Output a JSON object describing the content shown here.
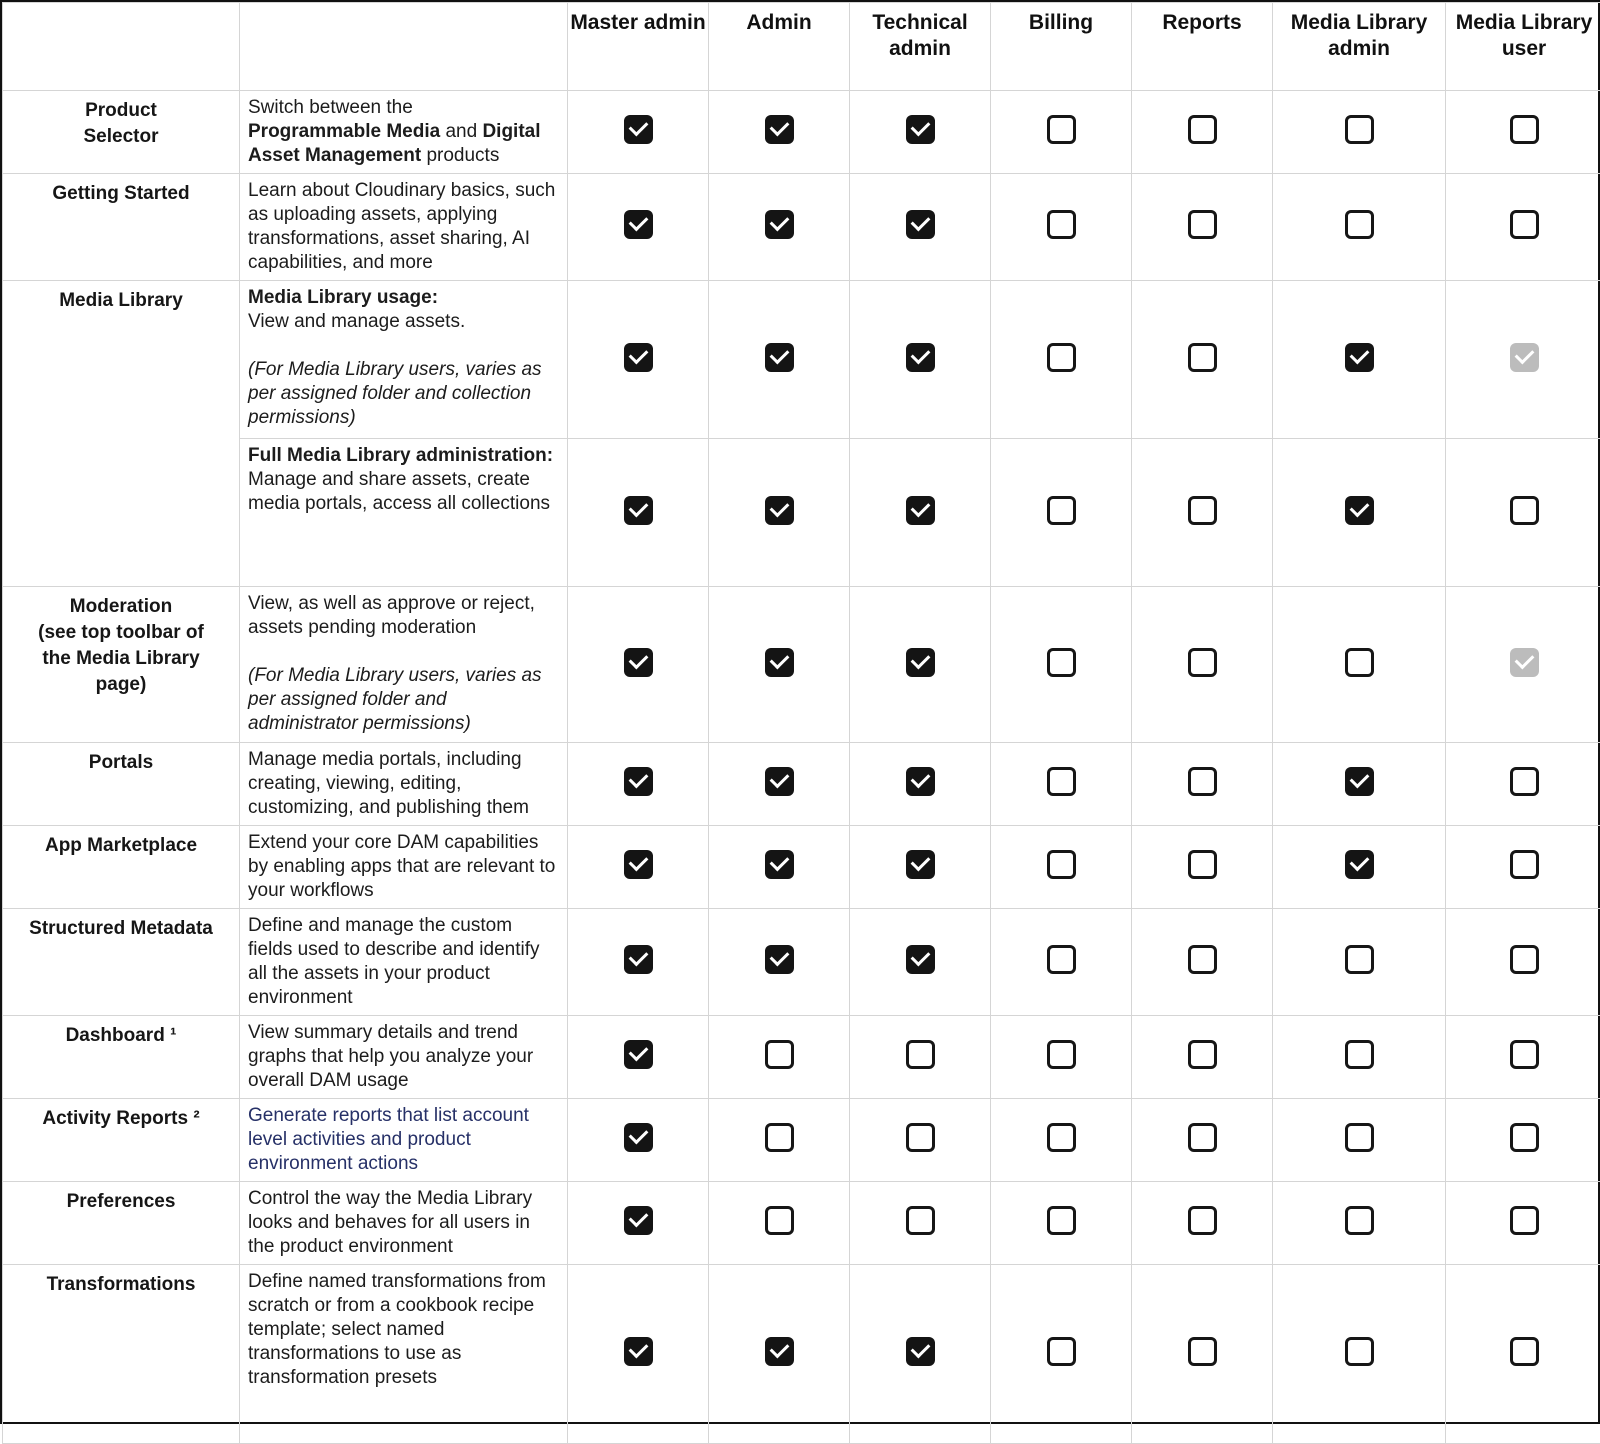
{
  "colors": {
    "checkbox_checked": "#141414",
    "checkbox_checked_disabled": "#bcbcbc",
    "checkbox_empty_border": "#161616",
    "grid_line": "#d5d5d5",
    "outer_border": "#111111",
    "link_text": "#263067",
    "body_text": "#1c1c1c"
  },
  "header": {
    "feature_column_label": "",
    "description_column_label": "",
    "roles": [
      "Master admin",
      "Admin",
      "Technical admin",
      "Billing",
      "Reports",
      "Media Library admin",
      "Media Library user"
    ]
  },
  "checkbox_states_legend": {
    "checked": "black checkbox with white checkmark",
    "empty": "white checkbox with black border",
    "checked_disabled": "gray checkbox with white checkmark"
  },
  "rows": [
    {
      "name": "product-selector",
      "label": "Product\nSelector",
      "desc": [
        {
          "text": "Switch between the\n"
        },
        {
          "text": "Programmable Media",
          "bold": true
        },
        {
          "text": " and "
        },
        {
          "text": "Digital Asset Management",
          "bold": true
        },
        {
          "text": " products"
        }
      ],
      "checks": [
        "checked",
        "checked",
        "checked",
        "empty",
        "empty",
        "empty",
        "empty"
      ]
    },
    {
      "name": "getting-started",
      "label": "Getting Started",
      "desc": [
        {
          "text": "Learn about Cloudinary basics, such as uploading assets, applying transformations, asset sharing, AI capabilities, and more"
        }
      ],
      "checks": [
        "checked",
        "checked",
        "checked",
        "empty",
        "empty",
        "empty",
        "empty"
      ]
    },
    {
      "name": "media-library-usage",
      "label": "Media Library",
      "label_rowspan": 2,
      "desc": [
        {
          "text": "Media Library usage:",
          "bold": true
        },
        {
          "text": "\nView and manage assets.\n\n"
        },
        {
          "text": "(For Media Library users, varies as per assigned folder and collection permissions)",
          "italic": true
        }
      ],
      "checks": [
        "checked",
        "checked",
        "checked",
        "empty",
        "empty",
        "checked",
        "checked_disabled"
      ]
    },
    {
      "name": "media-library-full-administration",
      "label": null,
      "desc": [
        {
          "text": "Full Media Library administration:",
          "bold": true
        },
        {
          "text": "\nManage and share assets, create media portals, access all collections"
        }
      ],
      "checks": [
        "checked",
        "checked",
        "checked",
        "empty",
        "empty",
        "checked",
        "empty"
      ]
    },
    {
      "name": "moderation",
      "label": "Moderation\n(see top toolbar of\nthe Media Library\npage)",
      "desc": [
        {
          "text": "View, as well as approve or reject, assets pending moderation\n\n"
        },
        {
          "text": "(For Media Library users, varies as per assigned folder and administrator permissions)",
          "italic": true
        }
      ],
      "checks": [
        "checked",
        "checked",
        "checked",
        "empty",
        "empty",
        "empty",
        "checked_disabled"
      ]
    },
    {
      "name": "portals",
      "label": "Portals",
      "desc": [
        {
          "text": "Manage media portals, including creating, viewing, editing, customizing, and publishing them"
        }
      ],
      "checks": [
        "checked",
        "checked",
        "checked",
        "empty",
        "empty",
        "checked",
        "empty"
      ]
    },
    {
      "name": "app-marketplace",
      "label": "App Marketplace",
      "desc": [
        {
          "text": "Extend your core DAM capabilities by enabling apps that are relevant to your workflows"
        }
      ],
      "checks": [
        "checked",
        "checked",
        "checked",
        "empty",
        "empty",
        "checked",
        "empty"
      ]
    },
    {
      "name": "structured-metadata",
      "label": "Structured Metadata",
      "desc": [
        {
          "text": "Define and manage the custom fields used to describe and identify all the assets in your product environment"
        }
      ],
      "checks": [
        "checked",
        "checked",
        "checked",
        "empty",
        "empty",
        "empty",
        "empty"
      ]
    },
    {
      "name": "dashboard",
      "label": "Dashboard ¹",
      "desc": [
        {
          "text": "View summary details and trend graphs that help you analyze your overall DAM usage"
        }
      ],
      "checks": [
        "checked",
        "empty",
        "empty",
        "empty",
        "empty",
        "empty",
        "empty"
      ]
    },
    {
      "name": "activity-reports",
      "label": "Activity Reports ²",
      "desc": [
        {
          "text": "Generate reports that list account level activities and product environment actions",
          "link": true
        }
      ],
      "checks": [
        "checked",
        "empty",
        "empty",
        "empty",
        "empty",
        "empty",
        "empty"
      ]
    },
    {
      "name": "preferences",
      "label": "Preferences",
      "desc": [
        {
          "text": "Control the way the Media Library looks and behaves for all users in the product environment"
        }
      ],
      "checks": [
        "checked",
        "empty",
        "empty",
        "empty",
        "empty",
        "empty",
        "empty"
      ]
    },
    {
      "name": "transformations",
      "label": "Transformations",
      "desc": [
        {
          "text": "Define named transformations from scratch or from a cookbook recipe template; select named transformations to use as transformation presets"
        }
      ],
      "checks": [
        "checked",
        "checked",
        "checked",
        "empty",
        "empty",
        "empty",
        "empty"
      ]
    }
  ]
}
